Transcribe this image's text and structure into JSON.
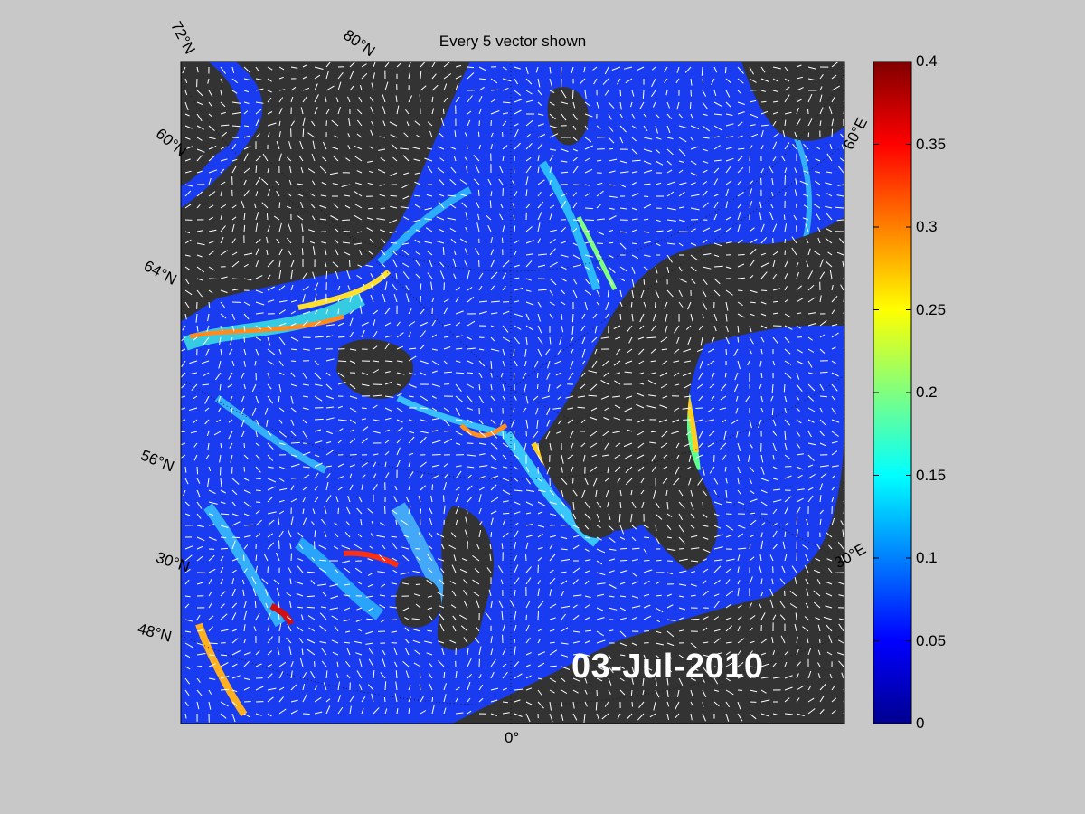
{
  "title": "Every 5 vector shown",
  "date_label": "03-Jul-2010",
  "lat_labels": [
    "72°N",
    "80°N",
    "60°N",
    "64°N",
    "56°N",
    "30°N",
    "48°N"
  ],
  "lon_labels": [
    "60°E",
    "30°E",
    "0°"
  ],
  "colorbar": {
    "ticks": [
      "0.4",
      "0.35",
      "0.3",
      "0.25",
      "0.2",
      "0.15",
      "0.1",
      "0.05",
      "0"
    ],
    "min": 0,
    "max": 0.4,
    "colormap": "jet"
  },
  "colors": {
    "background": "#c8c8c8",
    "land": "#333333",
    "sea_low": "#0000ff",
    "sea_high": "#800000"
  }
}
